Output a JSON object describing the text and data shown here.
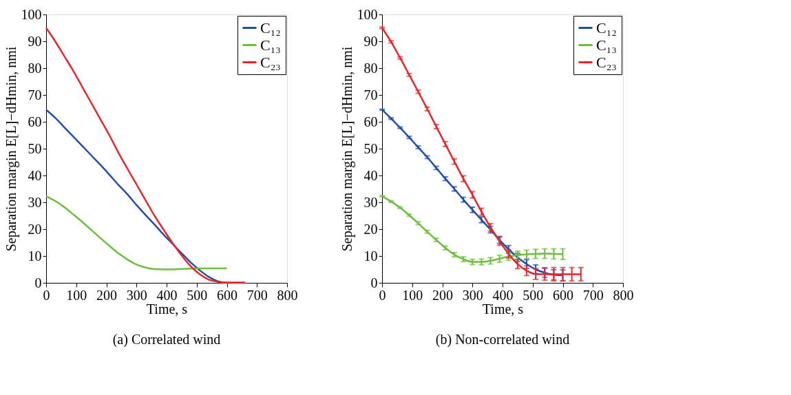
{
  "chart_data": [
    {
      "type": "line",
      "title": "(a) Correlated wind",
      "xlabel": "Time, s",
      "ylabel": "Separation margin E[L]−dHmin, nmi",
      "xlim": [
        0,
        800
      ],
      "ylim": [
        0,
        100
      ],
      "xticks": [
        0,
        100,
        200,
        300,
        400,
        500,
        600,
        700,
        800
      ],
      "yticks": [
        0,
        10,
        20,
        30,
        40,
        50,
        60,
        70,
        80,
        90,
        100
      ],
      "grid": false,
      "legend": "top right",
      "line_style": "solid",
      "series": [
        {
          "name": "C₁₂",
          "color": "#1f4fa8",
          "x": [
            0,
            30,
            60,
            90,
            120,
            150,
            180,
            210,
            240,
            270,
            300,
            330,
            360,
            390,
            420,
            450,
            480,
            510,
            540,
            570,
            600
          ],
          "values": [
            64.5,
            61.5,
            58,
            54.5,
            51,
            47.5,
            44,
            40.3,
            36.5,
            33,
            29,
            25.3,
            21.7,
            18,
            14.5,
            11,
            7.6,
            4.7,
            2.2,
            0.6,
            0
          ]
        },
        {
          "name": "C₁₃",
          "color": "#6cbf3a",
          "x": [
            0,
            30,
            60,
            90,
            120,
            150,
            180,
            210,
            240,
            270,
            300,
            330,
            360,
            390,
            420,
            450,
            480,
            510,
            540,
            570,
            600
          ],
          "values": [
            32.3,
            30.5,
            28.2,
            25.5,
            22.7,
            19.7,
            16.7,
            13.8,
            11,
            8.7,
            6.8,
            5.7,
            5.1,
            5,
            5,
            5.2,
            5.3,
            5.4,
            5.4,
            5.4,
            5.4
          ]
        },
        {
          "name": "C₂₃",
          "color": "#e8262b",
          "x": [
            0,
            30,
            60,
            90,
            120,
            150,
            180,
            210,
            240,
            270,
            300,
            330,
            360,
            390,
            420,
            450,
            480,
            510,
            540,
            570,
            600,
            630,
            660
          ],
          "values": [
            95,
            90,
            84.5,
            79,
            73,
            67,
            61,
            55,
            48.5,
            42.5,
            36.7,
            30.8,
            25,
            19.8,
            14.8,
            10.2,
            6.2,
            3.2,
            1.2,
            0.4,
            0.1,
            0.1,
            0.1
          ]
        }
      ]
    },
    {
      "type": "line",
      "title": "(b) Non-correlated wind",
      "xlabel": "Time, s",
      "ylabel": "Separation margin E[L]−dHmin, nmi",
      "xlim": [
        0,
        800
      ],
      "ylim": [
        0,
        100
      ],
      "xticks": [
        0,
        100,
        200,
        300,
        400,
        500,
        600,
        700,
        800
      ],
      "yticks": [
        0,
        10,
        20,
        30,
        40,
        50,
        60,
        70,
        80,
        90,
        100
      ],
      "grid": false,
      "legend": "top right",
      "line_style": "solid",
      "series": [
        {
          "name": "C₁₂",
          "color": "#1f4fa8",
          "x": [
            0,
            30,
            60,
            90,
            120,
            150,
            180,
            210,
            240,
            270,
            300,
            330,
            360,
            390,
            420,
            450,
            480,
            510,
            540,
            570,
            600
          ],
          "values": [
            64.5,
            61.2,
            57.8,
            54.2,
            50.5,
            46.8,
            42.8,
            38.8,
            35,
            31,
            27.2,
            23.5,
            19.8,
            16,
            12.5,
            9.5,
            7,
            5,
            3.8,
            3,
            2.8
          ],
          "errors": [
            0.2,
            0.3,
            0.3,
            0.4,
            0.5,
            0.5,
            0.6,
            0.7,
            0.8,
            0.9,
            1,
            1.1,
            1.2,
            1.3,
            1.4,
            1.5,
            1.6,
            1.7,
            1.8,
            1.9,
            2
          ]
        },
        {
          "name": "C₁₃",
          "color": "#6cbf3a",
          "x": [
            0,
            30,
            60,
            90,
            120,
            150,
            180,
            210,
            240,
            270,
            300,
            330,
            360,
            390,
            420,
            450,
            480,
            510,
            540,
            570,
            600
          ],
          "values": [
            32.3,
            30.3,
            28,
            25.2,
            22.2,
            19,
            16,
            13,
            10.5,
            8.8,
            7.8,
            7.8,
            8.2,
            9,
            9.8,
            10.3,
            10.6,
            10.8,
            10.9,
            10.8,
            10.7
          ],
          "errors": [
            0.2,
            0.3,
            0.3,
            0.4,
            0.5,
            0.5,
            0.6,
            0.7,
            0.8,
            0.9,
            1,
            1.1,
            1.2,
            1.3,
            1.4,
            1.5,
            1.6,
            1.7,
            1.8,
            1.9,
            2
          ]
        },
        {
          "name": "C₂₃",
          "color": "#e8262b",
          "x": [
            0,
            30,
            60,
            90,
            120,
            150,
            180,
            210,
            240,
            270,
            300,
            330,
            360,
            390,
            420,
            450,
            480,
            510,
            540,
            570,
            600,
            630,
            660
          ],
          "values": [
            95,
            89.8,
            83.8,
            77.5,
            71.2,
            64.8,
            58.2,
            51.7,
            45.2,
            38.8,
            32.8,
            26.5,
            20.7,
            15.5,
            10.8,
            7,
            4.5,
            3.3,
            3.2,
            3.2,
            3.2,
            3.2,
            3.2
          ],
          "errors": [
            0.3,
            0.4,
            0.4,
            0.5,
            0.6,
            0.7,
            0.8,
            0.9,
            1,
            1.1,
            1.2,
            1.3,
            1.4,
            1.5,
            1.6,
            1.7,
            1.8,
            2,
            2.2,
            2.5,
            2.5,
            2.5,
            2.5
          ]
        }
      ]
    }
  ]
}
